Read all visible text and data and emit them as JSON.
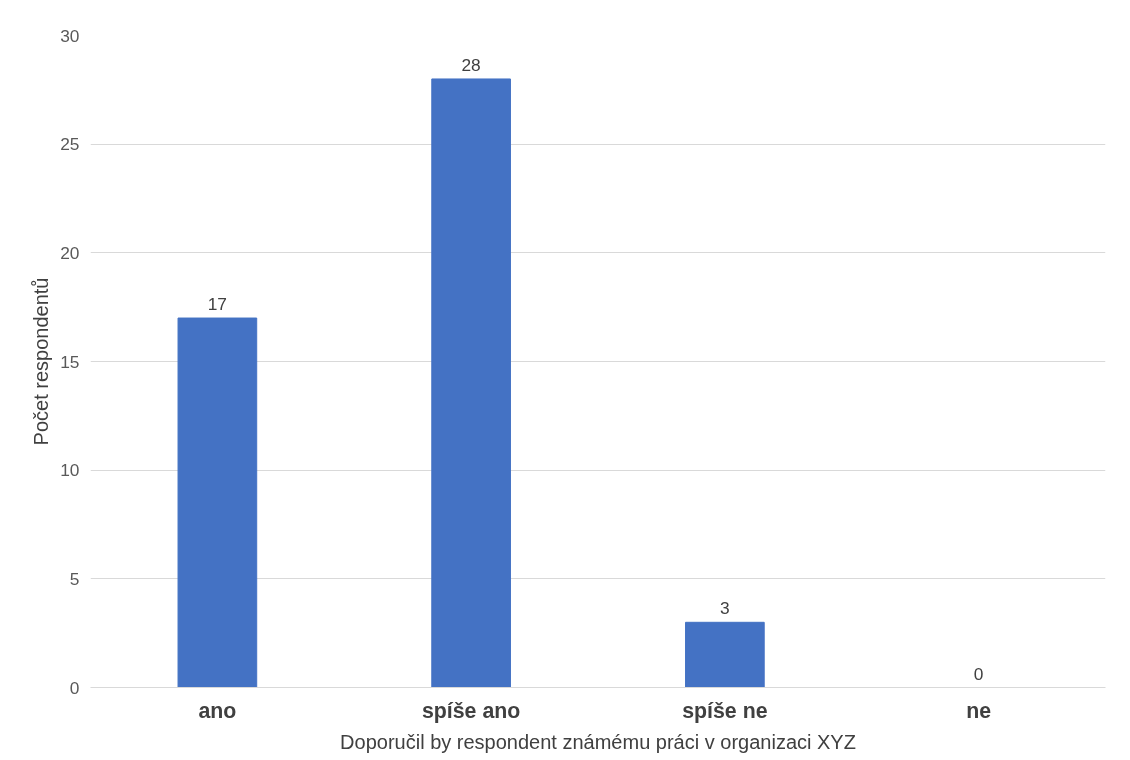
{
  "chart_data": {
    "type": "bar",
    "categories": [
      "ano",
      "spíše ano",
      "spíše ne",
      "ne"
    ],
    "values": [
      17,
      28,
      3,
      0
    ],
    "color": "#4472c4",
    "xlabel": "Doporučil by respondent známému práci v organizaci XYZ",
    "ylabel": "Počet respondentů",
    "ylim": [
      0,
      30
    ],
    "yticks": [
      0,
      5,
      10,
      15,
      20,
      25,
      30
    ],
    "grid": "y",
    "data_labels": true
  }
}
